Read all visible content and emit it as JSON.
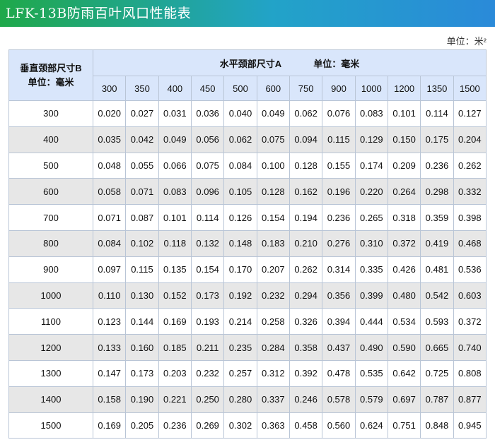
{
  "title": "LFK-13B防雨百叶风口性能表",
  "unit_label": "单位：米²",
  "table": {
    "corner_line1": "垂直颈部尺寸B",
    "corner_line2": "单位：毫米",
    "top_label": "水平颈部尺寸A",
    "top_unit": "单位：毫米",
    "columns": [
      "300",
      "350",
      "400",
      "450",
      "500",
      "600",
      "750",
      "900",
      "1000",
      "1200",
      "1350",
      "1500"
    ],
    "rows": [
      {
        "b": "300",
        "cells": [
          "0.020",
          "0.027",
          "0.031",
          "0.036",
          "0.040",
          "0.049",
          "0.062",
          "0.076",
          "0.083",
          "0.101",
          "0.114",
          "0.127"
        ]
      },
      {
        "b": "400",
        "cells": [
          "0.035",
          "0.042",
          "0.049",
          "0.056",
          "0.062",
          "0.075",
          "0.094",
          "0.115",
          "0.129",
          "0.150",
          "0.175",
          "0.204"
        ]
      },
      {
        "b": "500",
        "cells": [
          "0.048",
          "0.055",
          "0.066",
          "0.075",
          "0.084",
          "0.100",
          "0.128",
          "0.155",
          "0.174",
          "0.209",
          "0.236",
          "0.262"
        ]
      },
      {
        "b": "600",
        "cells": [
          "0.058",
          "0.071",
          "0.083",
          "0.096",
          "0.105",
          "0.128",
          "0.162",
          "0.196",
          "0.220",
          "0.264",
          "0.298",
          "0.332"
        ]
      },
      {
        "b": "700",
        "cells": [
          "0.071",
          "0.087",
          "0.101",
          "0.114",
          "0.126",
          "0.154",
          "0.194",
          "0.236",
          "0.265",
          "0.318",
          "0.359",
          "0.398"
        ]
      },
      {
        "b": "800",
        "cells": [
          "0.084",
          "0.102",
          "0.118",
          "0.132",
          "0.148",
          "0.183",
          "0.210",
          "0.276",
          "0.310",
          "0.372",
          "0.419",
          "0.468"
        ]
      },
      {
        "b": "900",
        "cells": [
          "0.097",
          "0.115",
          "0.135",
          "0.154",
          "0.170",
          "0.207",
          "0.262",
          "0.314",
          "0.335",
          "0.426",
          "0.481",
          "0.536"
        ]
      },
      {
        "b": "1000",
        "cells": [
          "0.110",
          "0.130",
          "0.152",
          "0.173",
          "0.192",
          "0.232",
          "0.294",
          "0.356",
          "0.399",
          "0.480",
          "0.542",
          "0.603"
        ]
      },
      {
        "b": "1100",
        "cells": [
          "0.123",
          "0.144",
          "0.169",
          "0.193",
          "0.214",
          "0.258",
          "0.326",
          "0.394",
          "0.444",
          "0.534",
          "0.593",
          "0.372"
        ]
      },
      {
        "b": "1200",
        "cells": [
          "0.133",
          "0.160",
          "0.185",
          "0.211",
          "0.235",
          "0.284",
          "0.358",
          "0.437",
          "0.490",
          "0.590",
          "0.665",
          "0.740"
        ]
      },
      {
        "b": "1300",
        "cells": [
          "0.147",
          "0.173",
          "0.203",
          "0.232",
          "0.257",
          "0.312",
          "0.392",
          "0.478",
          "0.535",
          "0.642",
          "0.725",
          "0.808"
        ]
      },
      {
        "b": "1400",
        "cells": [
          "0.158",
          "0.190",
          "0.221",
          "0.250",
          "0.280",
          "0.337",
          "0.246",
          "0.578",
          "0.579",
          "0.697",
          "0.787",
          "0.877"
        ]
      },
      {
        "b": "1500",
        "cells": [
          "0.169",
          "0.205",
          "0.236",
          "0.269",
          "0.302",
          "0.363",
          "0.458",
          "0.560",
          "0.624",
          "0.751",
          "0.848",
          "0.945"
        ]
      }
    ]
  }
}
